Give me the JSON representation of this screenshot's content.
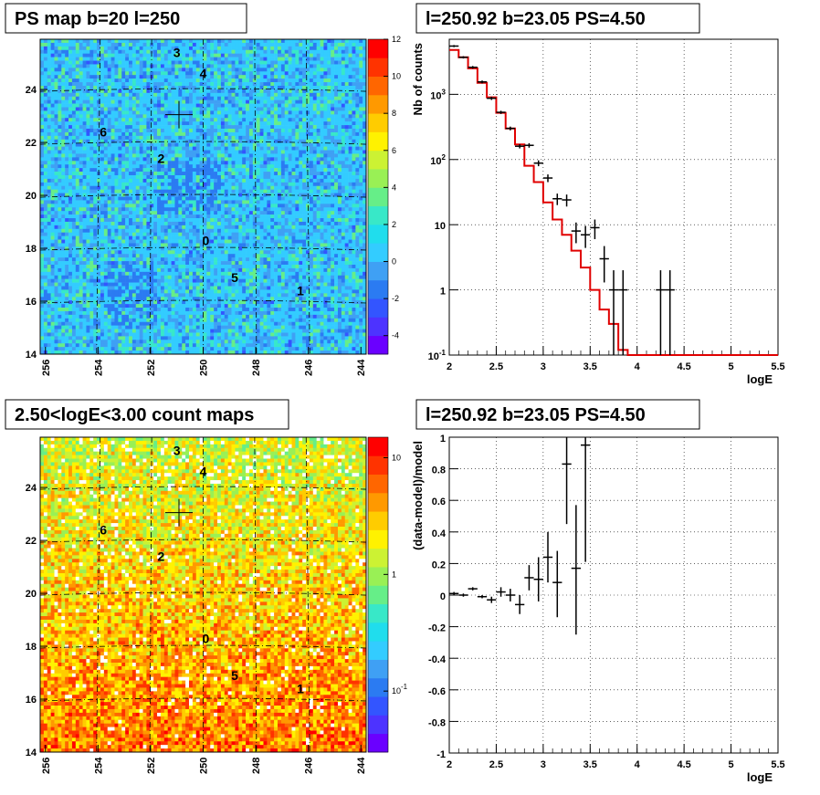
{
  "chart_data": [
    {
      "type": "heatmap",
      "title": "PS map b=20 l=250",
      "x_ticks": [
        "256",
        "254",
        "252",
        "250",
        "248",
        "246",
        "244"
      ],
      "y_ticks": [
        "14",
        "16",
        "18",
        "20",
        "22",
        "24"
      ],
      "xlim": [
        256.2,
        243.8
      ],
      "ylim": [
        14,
        25.9
      ],
      "colorbar": {
        "ticks": [
          "12",
          "10",
          "8",
          "6",
          "4",
          "2",
          "0",
          "-2",
          "-4"
        ],
        "min": -5,
        "max": 12,
        "scale": "linear"
      },
      "markers": [
        {
          "label": "3",
          "l": 251.0,
          "b": 25.4
        },
        {
          "label": "4",
          "l": 250.0,
          "b": 24.6
        },
        {
          "label": "6",
          "l": 253.8,
          "b": 22.4
        },
        {
          "label": "2",
          "l": 251.6,
          "b": 21.4
        },
        {
          "label": "0",
          "l": 249.9,
          "b": 18.3
        },
        {
          "label": "5",
          "l": 248.8,
          "b": 16.9
        },
        {
          "label": "1",
          "l": 246.3,
          "b": 16.4
        }
      ],
      "cross": {
        "l": 250.92,
        "b": 23.05
      }
    },
    {
      "type": "line",
      "title": "l=250.92 b=23.05 PS=4.50",
      "xlabel": "logE",
      "ylabel": "Nb of counts",
      "yscale": "log",
      "xlim": [
        2,
        5.5
      ],
      "ylim": [
        0.1,
        7000
      ],
      "x_ticks": [
        "2",
        "2.5",
        "3",
        "3.5",
        "4",
        "4.5",
        "5",
        "5.5"
      ],
      "y_ticks": [
        "10^-1",
        "1",
        "10",
        "10^2",
        "10^3"
      ],
      "grid": true,
      "series": [
        {
          "kind": "model-step",
          "color": "#e00000",
          "edges": [
            2.0,
            2.1,
            2.2,
            2.3,
            2.4,
            2.5,
            2.6,
            2.7,
            2.8,
            2.9,
            3.0,
            3.1,
            3.2,
            3.3,
            3.4,
            3.5,
            3.6,
            3.7,
            3.8,
            3.9,
            4.0,
            4.1,
            4.2,
            4.3,
            4.4,
            4.5,
            4.6,
            4.7,
            4.8,
            4.9,
            5.0,
            5.1,
            5.2,
            5.3,
            5.4,
            5.5
          ],
          "values": [
            4800,
            3700,
            2500,
            1500,
            900,
            520,
            300,
            170,
            80,
            45,
            22,
            12,
            7,
            4,
            2.2,
            1.0,
            0.5,
            0.3,
            0.12,
            0.1,
            0.1,
            0.1,
            0.1,
            0.1,
            0.1,
            0.1,
            0.1,
            0.1,
            0.1,
            0.1,
            0.1,
            0.1,
            0.1,
            0.1,
            0.1
          ]
        },
        {
          "kind": "data-points",
          "color": "#000000",
          "points": [
            {
              "x": 2.05,
              "y": 5500,
              "lo": 5300,
              "hi": 5700
            },
            {
              "x": 2.15,
              "y": 3700,
              "lo": 3550,
              "hi": 3850
            },
            {
              "x": 2.25,
              "y": 2600,
              "lo": 2480,
              "hi": 2720
            },
            {
              "x": 2.35,
              "y": 1550,
              "lo": 1470,
              "hi": 1630
            },
            {
              "x": 2.45,
              "y": 870,
              "lo": 820,
              "hi": 920
            },
            {
              "x": 2.55,
              "y": 530,
              "lo": 500,
              "hi": 560
            },
            {
              "x": 2.65,
              "y": 300,
              "lo": 280,
              "hi": 320
            },
            {
              "x": 2.75,
              "y": 160,
              "lo": 148,
              "hi": 172
            },
            {
              "x": 2.85,
              "y": 165,
              "lo": 152,
              "hi": 178
            },
            {
              "x": 2.95,
              "y": 88,
              "lo": 79,
              "hi": 97
            },
            {
              "x": 3.05,
              "y": 52,
              "lo": 45,
              "hi": 59
            },
            {
              "x": 3.15,
              "y": 25,
              "lo": 20,
              "hi": 30
            },
            {
              "x": 3.25,
              "y": 24,
              "lo": 19,
              "hi": 29
            },
            {
              "x": 3.35,
              "y": 8,
              "lo": 5.2,
              "hi": 10.8
            },
            {
              "x": 3.45,
              "y": 7,
              "lo": 4.4,
              "hi": 9.6
            },
            {
              "x": 3.55,
              "y": 9,
              "lo": 6,
              "hi": 12
            },
            {
              "x": 3.65,
              "y": 3,
              "lo": 1.3,
              "hi": 4.7
            },
            {
              "x": 3.75,
              "y": 1,
              "lo": 0.1,
              "hi": 2
            },
            {
              "x": 3.85,
              "y": 1,
              "lo": 0.1,
              "hi": 2
            },
            {
              "x": 4.25,
              "y": 1,
              "lo": 0.1,
              "hi": 2
            },
            {
              "x": 4.35,
              "y": 1,
              "lo": 0.1,
              "hi": 2
            }
          ]
        }
      ]
    },
    {
      "type": "heatmap",
      "title": "2.50<logE<3.00 count maps",
      "x_ticks": [
        "256",
        "254",
        "252",
        "250",
        "248",
        "246",
        "244"
      ],
      "y_ticks": [
        "14",
        "16",
        "18",
        "20",
        "22",
        "24"
      ],
      "xlim": [
        256.2,
        243.8
      ],
      "ylim": [
        14,
        25.9
      ],
      "colorbar": {
        "ticks": [
          "10",
          "1",
          "10^-1"
        ],
        "min": 0.03,
        "max": 15,
        "scale": "log"
      },
      "markers": [
        {
          "label": "3",
          "l": 251.0,
          "b": 25.4
        },
        {
          "label": "4",
          "l": 250.0,
          "b": 24.6
        },
        {
          "label": "6",
          "l": 253.8,
          "b": 22.4
        },
        {
          "label": "2",
          "l": 251.6,
          "b": 21.4
        },
        {
          "label": "0",
          "l": 249.9,
          "b": 18.3
        },
        {
          "label": "5",
          "l": 248.8,
          "b": 16.9
        },
        {
          "label": "1",
          "l": 246.3,
          "b": 16.4
        }
      ],
      "cross": {
        "l": 250.92,
        "b": 23.05
      }
    },
    {
      "type": "scatter",
      "title": "l=250.92 b=23.05 PS=4.50",
      "xlabel": "logE",
      "ylabel": "(data-model)/model",
      "xlim": [
        2,
        5.5
      ],
      "ylim": [
        -1,
        1
      ],
      "x_ticks": [
        "2",
        "2.5",
        "3",
        "3.5",
        "4",
        "4.5",
        "5",
        "5.5"
      ],
      "y_ticks": [
        "-1",
        "-0.8",
        "-0.6",
        "-0.4",
        "-0.2",
        "0",
        "0.2",
        "0.4",
        "0.6",
        "0.8",
        "1"
      ],
      "grid": true,
      "series": [
        {
          "kind": "data-points",
          "color": "#000000",
          "points": [
            {
              "x": 2.05,
              "y": 0.01,
              "lo": 0.0,
              "hi": 0.02
            },
            {
              "x": 2.15,
              "y": 0.0,
              "lo": -0.01,
              "hi": 0.01
            },
            {
              "x": 2.25,
              "y": 0.04,
              "lo": 0.03,
              "hi": 0.05
            },
            {
              "x": 2.35,
              "y": -0.01,
              "lo": -0.02,
              "hi": 0.0
            },
            {
              "x": 2.45,
              "y": -0.03,
              "lo": -0.05,
              "hi": -0.01
            },
            {
              "x": 2.55,
              "y": 0.02,
              "lo": -0.01,
              "hi": 0.05
            },
            {
              "x": 2.65,
              "y": 0.0,
              "lo": -0.04,
              "hi": 0.04
            },
            {
              "x": 2.75,
              "y": -0.06,
              "lo": -0.12,
              "hi": 0.0
            },
            {
              "x": 2.85,
              "y": 0.11,
              "lo": 0.03,
              "hi": 0.19
            },
            {
              "x": 2.95,
              "y": 0.1,
              "lo": -0.04,
              "hi": 0.24
            },
            {
              "x": 3.05,
              "y": 0.24,
              "lo": 0.08,
              "hi": 0.4
            },
            {
              "x": 3.15,
              "y": 0.08,
              "lo": -0.14,
              "hi": 0.28
            },
            {
              "x": 3.25,
              "y": 0.83,
              "lo": 0.45,
              "hi": 1.0
            },
            {
              "x": 3.35,
              "y": 0.17,
              "lo": -0.25,
              "hi": 0.57
            },
            {
              "x": 3.45,
              "y": 0.95,
              "lo": 0.21,
              "hi": 1.0
            }
          ]
        }
      ]
    }
  ]
}
